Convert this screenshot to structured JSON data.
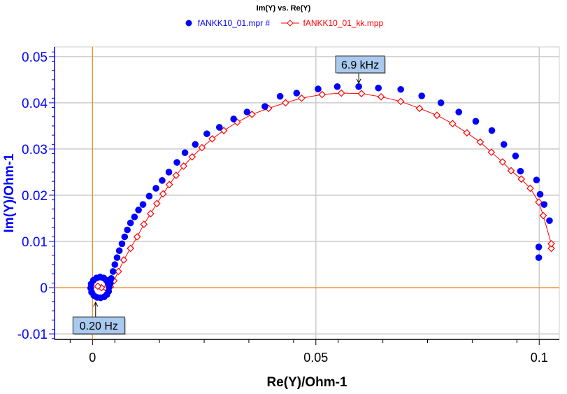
{
  "chart_data": {
    "type": "scatter",
    "title": "Im(Y) vs. Re(Y)",
    "xlabel": "Re(Y)/Ohm-1",
    "ylabel": "Im(Y)/Ohm-1",
    "xlim": [
      -0.0085,
      0.1045
    ],
    "ylim": [
      -0.0112,
      0.0521
    ],
    "grid": true,
    "legend_position": "top-center",
    "x_ticks": [
      {
        "v": 0,
        "label": "0"
      },
      {
        "v": 0.05,
        "label": "0.05"
      },
      {
        "v": 0.1,
        "label": "0.1"
      }
    ],
    "y_ticks": [
      {
        "v": 0.05,
        "label": "0.05"
      },
      {
        "v": 0.04,
        "label": "0.04"
      },
      {
        "v": 0.03,
        "label": "0.03"
      },
      {
        "v": 0.02,
        "label": "0.02"
      },
      {
        "v": 0.01,
        "label": "0.01"
      },
      {
        "v": 0,
        "label": "0"
      },
      {
        "v": -0.01,
        "label": "-0.01"
      }
    ],
    "series": [
      {
        "name": "fANKK10_01.mpr #",
        "color": "#0000ff",
        "marker": "dot",
        "line": false,
        "points": [
          [
            0.0999,
            0.0065
          ],
          [
            0.0999,
            0.0088
          ],
          [
            0.1023,
            0.0145
          ],
          [
            0.1011,
            0.018
          ],
          [
            0.1002,
            0.0202
          ],
          [
            0.0994,
            0.0233
          ],
          [
            0.0958,
            0.0252
          ],
          [
            0.0947,
            0.0285
          ],
          [
            0.0921,
            0.031
          ],
          [
            0.0894,
            0.034
          ],
          [
            0.0858,
            0.036
          ],
          [
            0.082,
            0.038
          ],
          [
            0.078,
            0.04
          ],
          [
            0.0737,
            0.0415
          ],
          [
            0.069,
            0.0429
          ],
          [
            0.064,
            0.0432
          ],
          [
            0.0596,
            0.0435
          ],
          [
            0.0548,
            0.0435
          ],
          [
            0.0505,
            0.043
          ],
          [
            0.0457,
            0.0421
          ],
          [
            0.042,
            0.0414
          ],
          [
            0.0386,
            0.0392
          ],
          [
            0.0346,
            0.038
          ],
          [
            0.0316,
            0.0365
          ],
          [
            0.0284,
            0.0347
          ],
          [
            0.0256,
            0.0333
          ],
          [
            0.023,
            0.031
          ],
          [
            0.0207,
            0.0292
          ],
          [
            0.0189,
            0.0271
          ],
          [
            0.0171,
            0.025
          ],
          [
            0.0156,
            0.0232
          ],
          [
            0.0142,
            0.0215
          ],
          [
            0.0127,
            0.0198
          ],
          [
            0.0113,
            0.018
          ],
          [
            0.0103,
            0.0168
          ],
          [
            0.0094,
            0.0153
          ],
          [
            0.0085,
            0.014
          ],
          [
            0.0078,
            0.0125
          ],
          [
            0.0072,
            0.011
          ],
          [
            0.0066,
            0.0095
          ],
          [
            0.006,
            0.008
          ],
          [
            0.0055,
            0.0065
          ],
          [
            0.005,
            0.005
          ],
          [
            0.0046,
            0.0035
          ],
          [
            0.0042,
            0.002
          ],
          [
            0.004,
            0.001
          ],
          [
            0.0037,
            0.0001
          ],
          [
            0.0036,
            -0.0008
          ],
          [
            0.0032,
            -0.0015
          ],
          [
            0.0026,
            -0.002
          ],
          [
            0.0018,
            -0.0022
          ],
          [
            0.001,
            -0.0021
          ],
          [
            0.0003,
            -0.0017
          ],
          [
            -0.0002,
            -0.001
          ],
          [
            -0.0004,
            -0.0001
          ],
          [
            -0.0003,
            0.0008
          ],
          [
            0.0002,
            0.0016
          ],
          [
            0.0009,
            0.0021
          ],
          [
            0.0017,
            0.0023
          ],
          [
            0.0025,
            0.0021
          ],
          [
            0.0031,
            0.0016
          ],
          [
            0.0035,
            0.0009
          ]
        ]
      },
      {
        "name": "fANKK10_01_kk.mpp",
        "color": "#ff0000",
        "marker": "diamond",
        "line": true,
        "points": [
          [
            0.1027,
            0.0085
          ],
          [
            0.1027,
            0.0095
          ],
          [
            0.1009,
            0.0156
          ],
          [
            0.0999,
            0.0185
          ],
          [
            0.098,
            0.0215
          ],
          [
            0.096,
            0.0235
          ],
          [
            0.0937,
            0.0253
          ],
          [
            0.0918,
            0.0272
          ],
          [
            0.0893,
            0.0293
          ],
          [
            0.0868,
            0.0315
          ],
          [
            0.0838,
            0.0335
          ],
          [
            0.0806,
            0.0355
          ],
          [
            0.0771,
            0.0373
          ],
          [
            0.0732,
            0.0388
          ],
          [
            0.069,
            0.0403
          ],
          [
            0.0646,
            0.0413
          ],
          [
            0.0602,
            0.042
          ],
          [
            0.0557,
            0.0421
          ],
          [
            0.0514,
            0.0418
          ],
          [
            0.0468,
            0.041
          ],
          [
            0.0432,
            0.04
          ],
          [
            0.0394,
            0.0388
          ],
          [
            0.0357,
            0.0375
          ],
          [
            0.0324,
            0.0358
          ],
          [
            0.0294,
            0.034
          ],
          [
            0.0268,
            0.0322
          ],
          [
            0.0245,
            0.0303
          ],
          [
            0.0223,
            0.0283
          ],
          [
            0.0204,
            0.0263
          ],
          [
            0.0187,
            0.0243
          ],
          [
            0.0172,
            0.0223
          ],
          [
            0.0158,
            0.0203
          ],
          [
            0.0144,
            0.0182
          ],
          [
            0.013,
            0.016
          ],
          [
            0.0115,
            0.0137
          ],
          [
            0.01,
            0.011
          ],
          [
            0.0085,
            0.0085
          ],
          [
            0.007,
            0.006
          ],
          [
            0.0058,
            0.0035
          ],
          [
            0.0048,
            0.0015
          ],
          [
            0.004,
            0.0002
          ],
          [
            0.003,
            -0.0001
          ],
          [
            0.002,
            0.0
          ],
          [
            0.0012,
            0.0003
          ]
        ]
      }
    ],
    "annotations": [
      {
        "label": "6.9 kHz",
        "x": 0.0596,
        "y": 0.0435
      },
      {
        "label": "0.20 Hz",
        "x": 0.0007,
        "y": -0.0024
      }
    ]
  }
}
